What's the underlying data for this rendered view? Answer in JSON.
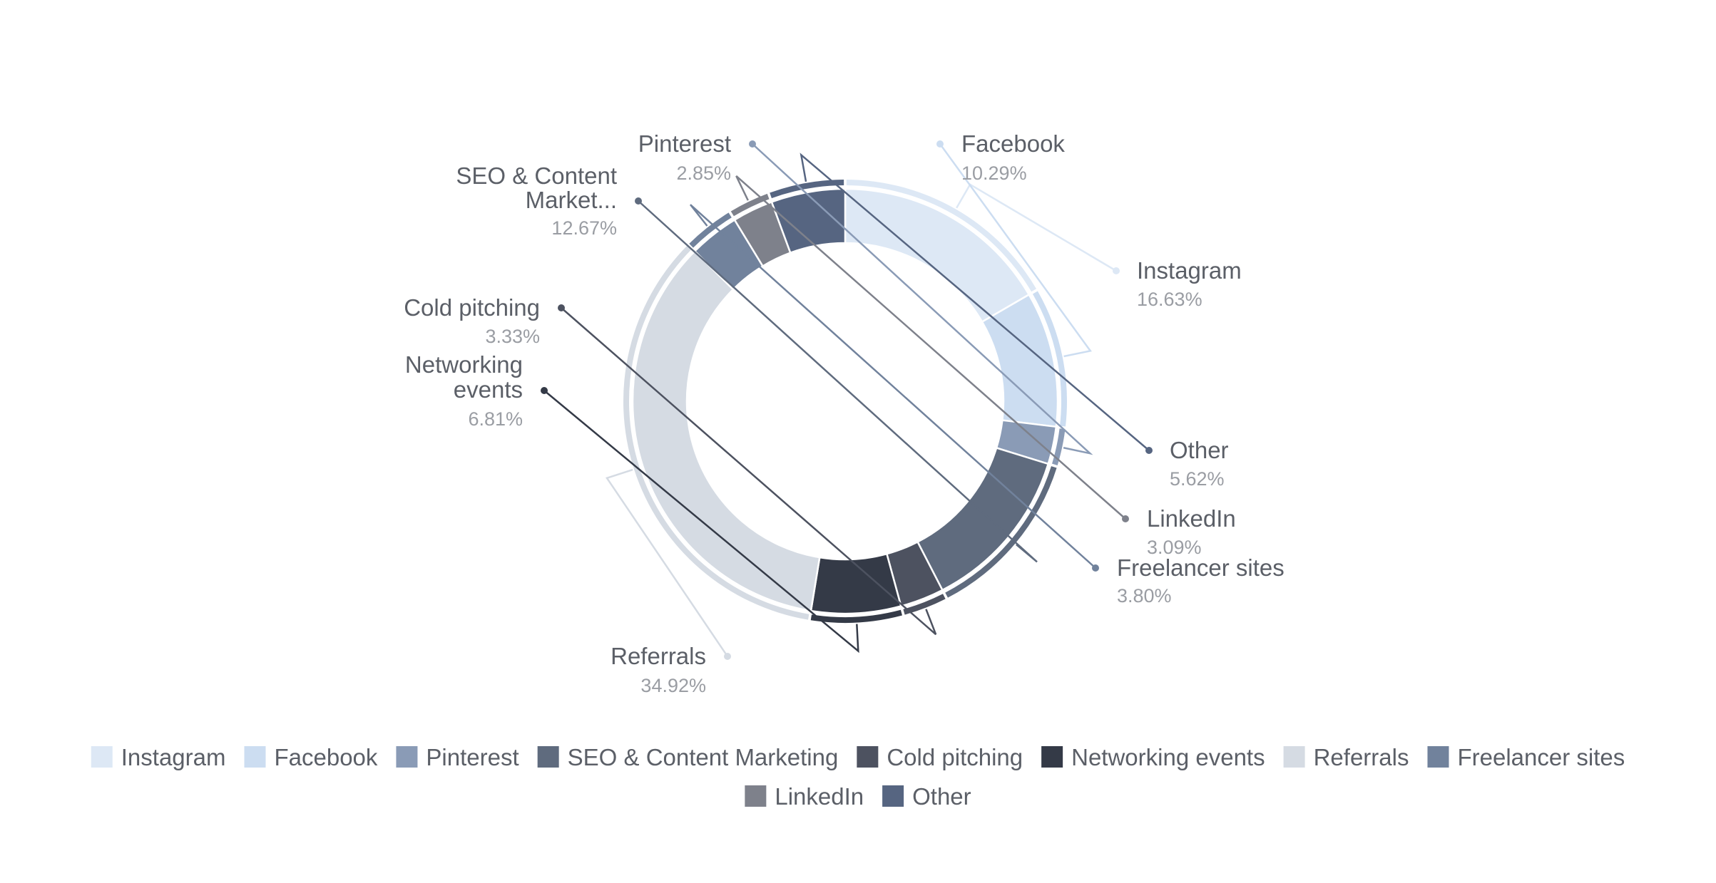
{
  "chart_data": {
    "type": "pie",
    "subtype": "donut",
    "title": "",
    "legend_position": "bottom",
    "slices": [
      {
        "name": "Instagram",
        "value": 16.63,
        "label": "Instagram",
        "pct_text": "16.63%",
        "color": "#dde8f5"
      },
      {
        "name": "Facebook",
        "value": 10.29,
        "label": "Facebook",
        "pct_text": "10.29%",
        "color": "#ccddf1"
      },
      {
        "name": "Pinterest",
        "value": 2.85,
        "label": "Pinterest",
        "pct_text": "2.85%",
        "color": "#8a9bb6"
      },
      {
        "name": "SEO & Content Marketing",
        "value": 12.67,
        "label": "SEO & Content Market...",
        "pct_text": "12.67%",
        "color": "#5f6b7e"
      },
      {
        "name": "Cold pitching",
        "value": 3.33,
        "label": "Cold pitching",
        "pct_text": "3.33%",
        "color": "#4d5260"
      },
      {
        "name": "Networking events",
        "value": 6.81,
        "label": "Networking events",
        "pct_text": "6.81%",
        "color": "#343a47"
      },
      {
        "name": "Referrals",
        "value": 34.92,
        "label": "Referrals",
        "pct_text": "34.92%",
        "color": "#d5dbe3"
      },
      {
        "name": "Freelancer sites",
        "value": 3.8,
        "label": "Freelancer sites",
        "pct_text": "3.80%",
        "color": "#71829c"
      },
      {
        "name": "LinkedIn",
        "value": 3.09,
        "label": "LinkedIn",
        "pct_text": "3.09%",
        "color": "#7e818b"
      },
      {
        "name": "Other",
        "value": 5.62,
        "label": "Other",
        "pct_text": "5.62%",
        "color": "#566581"
      }
    ]
  }
}
